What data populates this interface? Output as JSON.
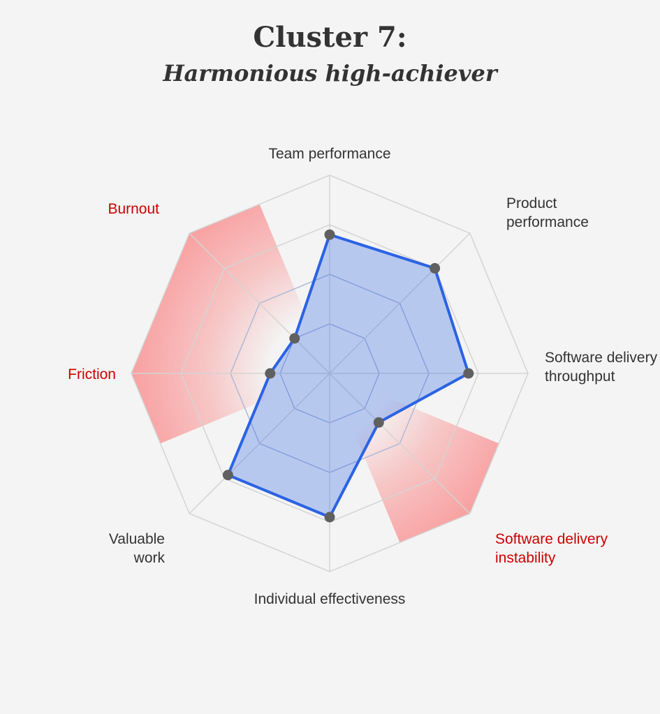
{
  "chart_data": {
    "type": "radar",
    "title": "Cluster 7:",
    "subtitle": "Harmonious high-achiever",
    "axes": [
      {
        "label": [
          "Team performance"
        ],
        "negative": false
      },
      {
        "label": [
          "Product",
          "performance"
        ],
        "negative": false
      },
      {
        "label": [
          "Software delivery",
          "throughput"
        ],
        "negative": false
      },
      {
        "label": [
          "Software delivery",
          "instability"
        ],
        "negative": true
      },
      {
        "label": [
          "Individual effectiveness"
        ],
        "negative": false
      },
      {
        "label": [
          "Valuable",
          "work"
        ],
        "negative": false
      },
      {
        "label": [
          "Friction"
        ],
        "negative": true
      },
      {
        "label": [
          "Burnout"
        ],
        "negative": true
      }
    ],
    "scale_max": 4,
    "rings": 4,
    "values": [
      2.8,
      3.0,
      2.8,
      1.4,
      2.9,
      2.9,
      1.2,
      1.0
    ],
    "colors": {
      "series_line": "#2b63e3",
      "series_fill": "#2b63e3",
      "point": "#606060",
      "grid": "#d4d4d4",
      "inner_grid": "#aeb9d8",
      "label": "#333333",
      "negative_label": "#cc0000",
      "negative_zone": "#f9a0a0",
      "background": "#f4f4f4"
    }
  }
}
